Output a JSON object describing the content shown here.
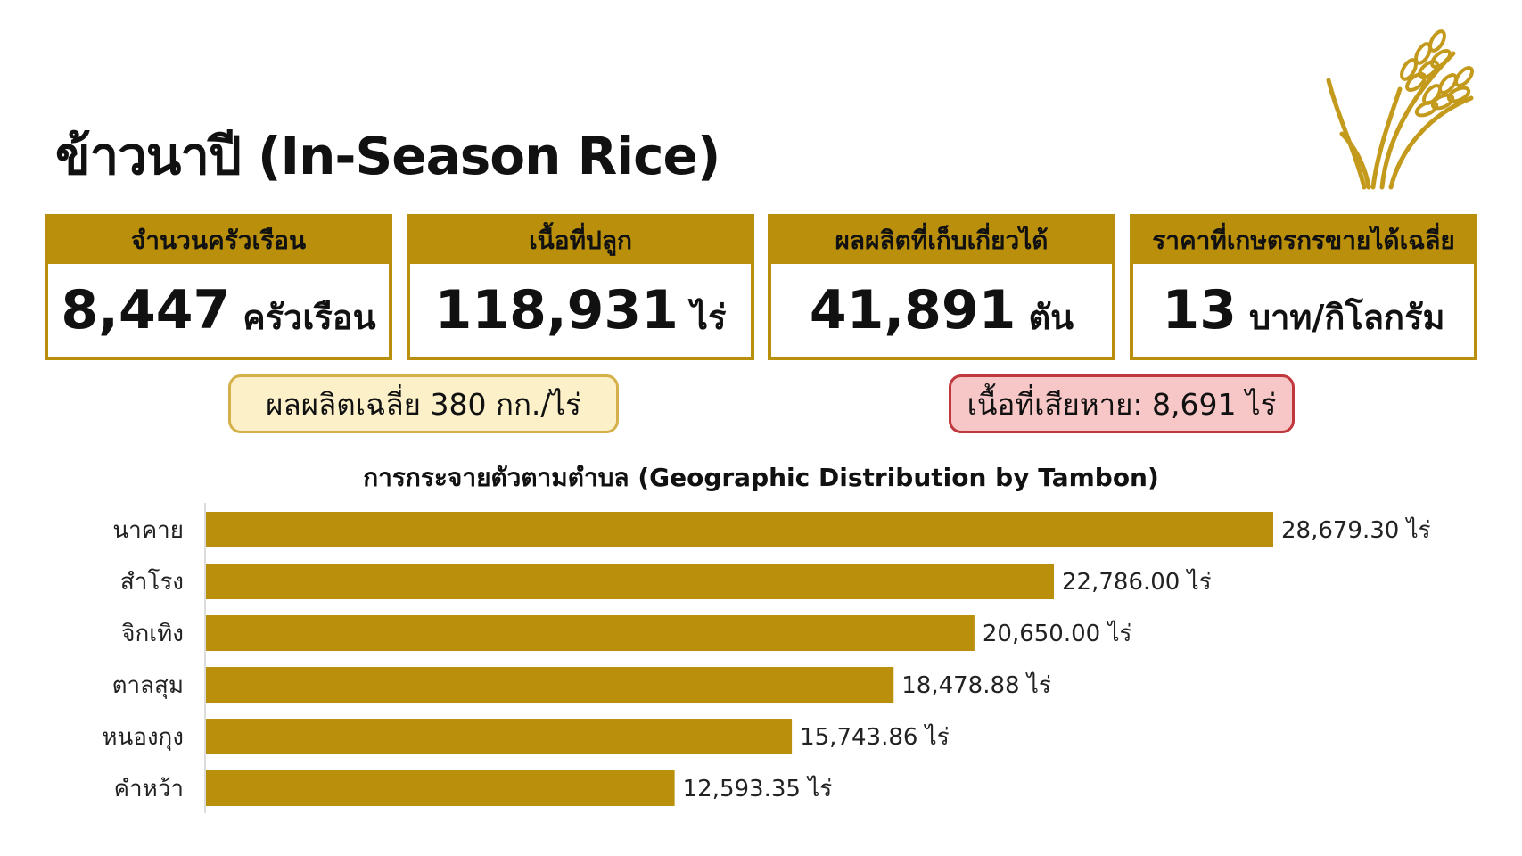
{
  "page": {
    "title": "ข้าวนาปี (In-Season Rice)"
  },
  "stats": [
    {
      "label": "จำนวนครัวเรือน",
      "value": "8,447",
      "unit": "ครัวเรือน"
    },
    {
      "label": "เนื้อที่ปลูก",
      "value": "118,931",
      "unit": "ไร่"
    },
    {
      "label": "ผลผลิตที่เก็บเกี่ยวได้",
      "value": "41,891",
      "unit": "ตัน"
    },
    {
      "label": "ราคาที่เกษตรกรขายได้เฉลี่ย",
      "value": "13",
      "unit": "บาท/กิโลกรัม"
    }
  ],
  "notes": {
    "yield": "ผลผลิตเฉลี่ย 380 กก./ไร่",
    "damage": "เนื้อที่เสียหาย: 8,691 ไร่"
  },
  "colors": {
    "accent": "#b98f0b",
    "yield_bg": "#fbf0c8",
    "damage_bg": "#f7c6c6",
    "damage_border": "#c0383d"
  },
  "icons": {
    "logo": "rice-stalk-icon"
  },
  "chart_data": {
    "type": "bar",
    "orientation": "horizontal",
    "title": "การกระจายตัวตามตำบล (Geographic Distribution by Tambon)",
    "categories": [
      "นาคาย",
      "สำโรง",
      "จิกเทิง",
      "ตาลสุม",
      "หนองกุง",
      "คำหว้า"
    ],
    "values": [
      28679.3,
      22786.0,
      20650.0,
      18478.88,
      15743.86,
      12593.35
    ],
    "value_labels": [
      "28,679.30 ไร่",
      "22,786.00 ไร่",
      "20,650.00 ไร่",
      "18,478.88 ไร่",
      "15,743.86 ไร่",
      "12,593.35 ไร่"
    ],
    "xlabel": "",
    "ylabel": "",
    "grid": false,
    "legend": "none"
  }
}
